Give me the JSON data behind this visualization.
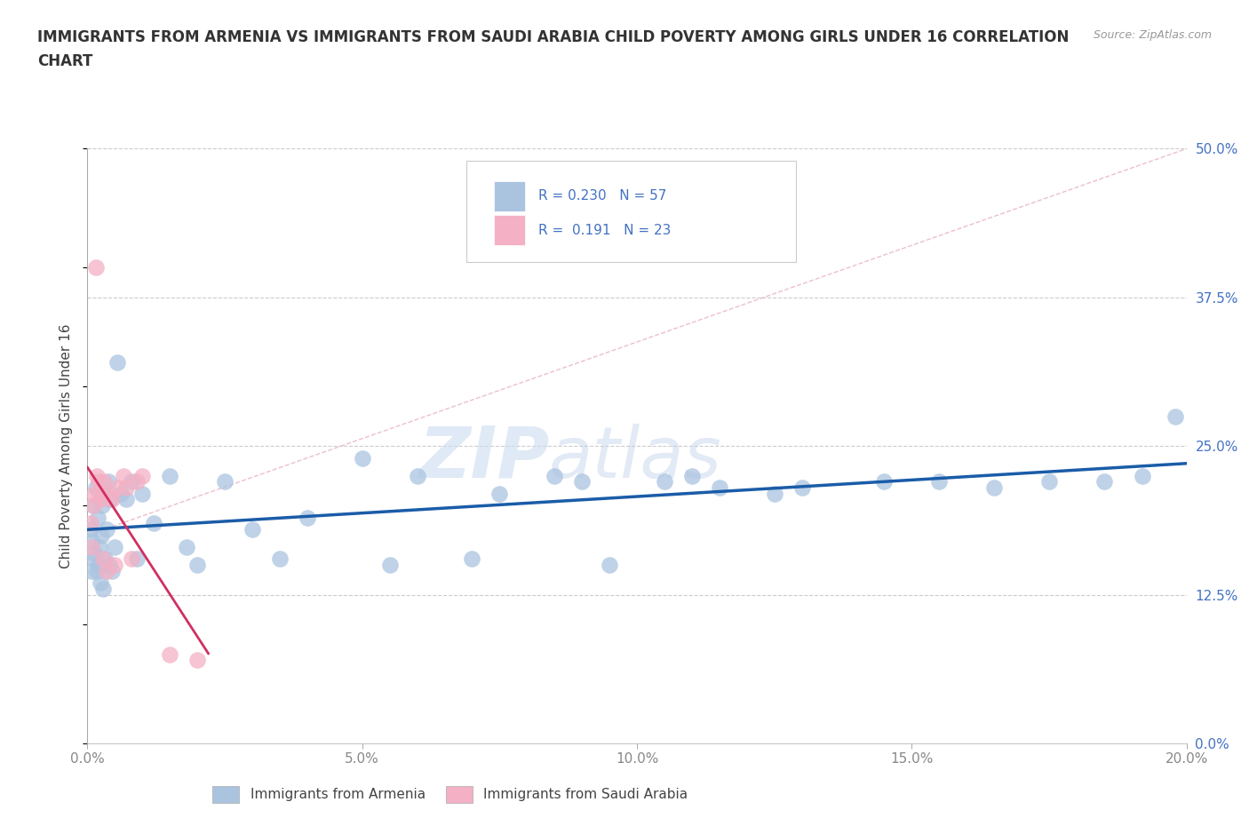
{
  "title_line1": "IMMIGRANTS FROM ARMENIA VS IMMIGRANTS FROM SAUDI ARABIA CHILD POVERTY AMONG GIRLS UNDER 16 CORRELATION",
  "title_line2": "CHART",
  "source": "Source: ZipAtlas.com",
  "ylabel": "Child Poverty Among Girls Under 16",
  "xlabel_vals": [
    0.0,
    5.0,
    10.0,
    15.0,
    20.0
  ],
  "ylabel_vals": [
    0.0,
    12.5,
    25.0,
    37.5,
    50.0
  ],
  "xlim": [
    0.0,
    20.0
  ],
  "ylim": [
    0.0,
    50.0
  ],
  "armenia_R": 0.23,
  "armenia_N": 57,
  "saudi_R": 0.191,
  "saudi_N": 23,
  "armenia_color": "#aac4e0",
  "saudi_color": "#f4b0c4",
  "armenia_line_color": "#1a5ca8",
  "saudi_line_color": "#d03060",
  "diag_color": "#e8b0c0",
  "watermark_color": "#ccddf0",
  "legend_bottom_labels": [
    "Immigrants from Armenia",
    "Immigrants from Saudi Arabia"
  ],
  "armenia_x": [
    0.05,
    0.07,
    0.08,
    0.1,
    0.12,
    0.13,
    0.15,
    0.17,
    0.18,
    0.2,
    0.22,
    0.23,
    0.25,
    0.27,
    0.28,
    0.3,
    0.32,
    0.35,
    0.38,
    0.4,
    0.42,
    0.45,
    0.5,
    0.55,
    0.6,
    0.7,
    0.8,
    0.9,
    1.0,
    1.2,
    1.5,
    1.8,
    2.0,
    2.5,
    3.0,
    3.5,
    4.0,
    5.0,
    5.5,
    6.0,
    7.0,
    7.5,
    8.5,
    9.0,
    9.5,
    10.5,
    11.0,
    11.5,
    12.5,
    13.0,
    14.5,
    15.5,
    16.5,
    17.5,
    18.5,
    19.2,
    19.8
  ],
  "armenia_y": [
    18.0,
    17.0,
    14.5,
    20.0,
    16.0,
    15.5,
    21.5,
    14.5,
    19.0,
    15.0,
    16.5,
    13.5,
    17.5,
    20.0,
    13.0,
    21.0,
    15.5,
    18.0,
    22.0,
    15.0,
    20.5,
    14.5,
    16.5,
    32.0,
    21.0,
    20.5,
    22.0,
    15.5,
    21.0,
    18.5,
    22.5,
    16.5,
    15.0,
    22.0,
    18.0,
    15.5,
    19.0,
    24.0,
    15.0,
    22.5,
    15.5,
    21.0,
    22.5,
    22.0,
    15.0,
    22.0,
    22.5,
    21.5,
    21.0,
    21.5,
    22.0,
    22.0,
    21.5,
    22.0,
    22.0,
    22.5,
    27.5
  ],
  "saudi_x": [
    0.05,
    0.07,
    0.1,
    0.12,
    0.15,
    0.17,
    0.2,
    0.22,
    0.25,
    0.28,
    0.3,
    0.35,
    0.4,
    0.45,
    0.5,
    0.55,
    0.65,
    0.7,
    0.8,
    0.9,
    1.0,
    1.5,
    2.0
  ],
  "saudi_y": [
    18.5,
    16.5,
    20.0,
    21.0,
    40.0,
    22.5,
    22.0,
    21.0,
    20.5,
    15.5,
    22.0,
    14.5,
    21.0,
    20.5,
    15.0,
    21.5,
    22.5,
    21.5,
    15.5,
    22.0,
    22.5,
    7.5,
    7.0
  ]
}
